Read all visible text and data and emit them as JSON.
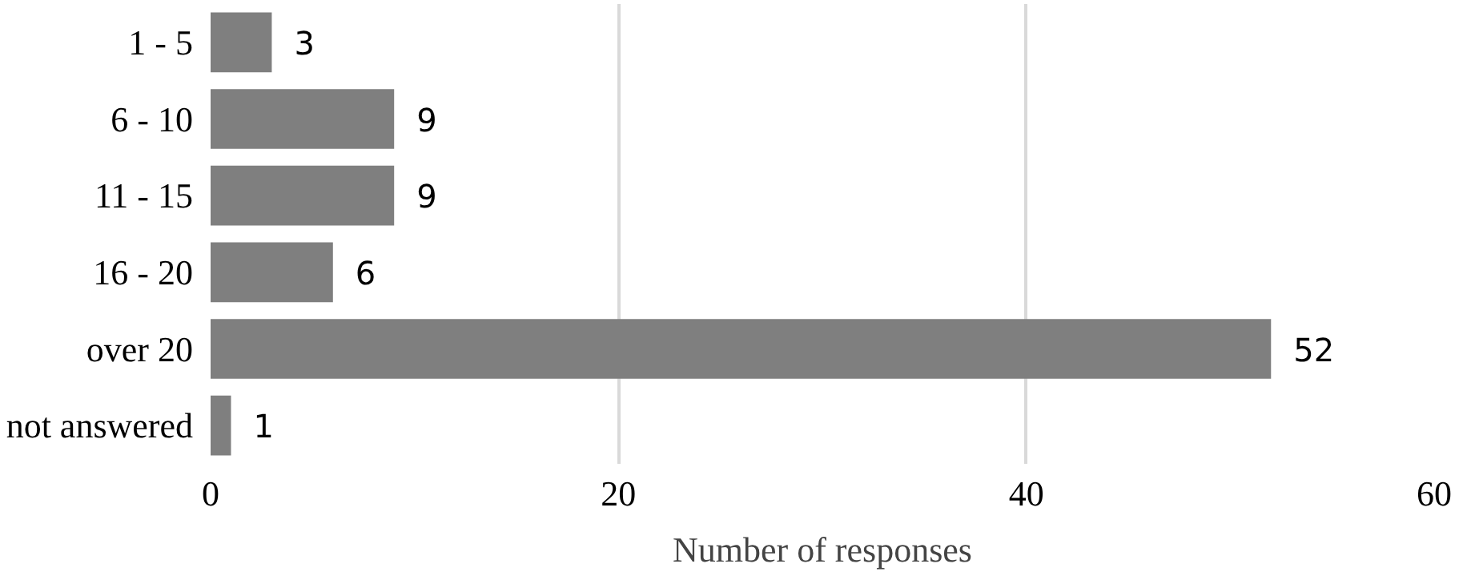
{
  "chart_data": {
    "type": "bar",
    "orientation": "horizontal",
    "xlabel": "Number of responses",
    "categories": [
      "1 - 5",
      "6 - 10",
      "11 - 15",
      "16 - 20",
      "over 20",
      "not answered"
    ],
    "values": [
      3,
      9,
      9,
      6,
      52,
      1
    ],
    "color": "#7f7f7f",
    "xlim": [
      0,
      60
    ],
    "xticks": [
      0,
      20,
      40,
      60
    ],
    "grid": "x",
    "data_labels": true
  }
}
